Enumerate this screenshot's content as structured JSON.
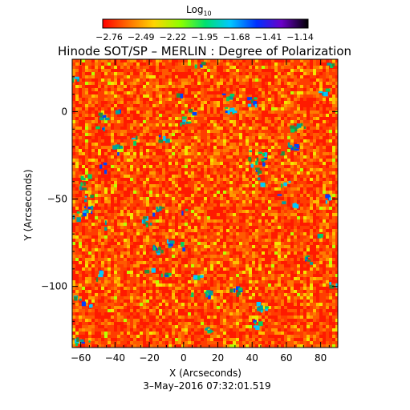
{
  "chart_data": {
    "type": "heatmap",
    "title": "Hinode SOT/SP – MERLIN : Degree of Polarization",
    "xlabel": "X (Arcseconds)",
    "ylabel": "Y (Arcseconds)",
    "xlim": [
      -65,
      90
    ],
    "ylim": [
      -135,
      30
    ],
    "x_ticks": [
      -60,
      -40,
      -20,
      0,
      20,
      40,
      60,
      80
    ],
    "y_ticks": [
      0,
      -50,
      -100
    ],
    "colorbar": {
      "label_base": "Log",
      "label_sub": "10",
      "tick_labels": [
        "−2.76",
        "−2.49",
        "−2.22",
        "−1.95",
        "−1.68",
        "−1.41",
        "−1.14"
      ],
      "range": [
        -2.76,
        -1.14
      ],
      "colormap": "rainbow (red → yellow → green → cyan → blue → purple → black)"
    },
    "field_description": "noisy field dominated by red-orange values (around −2.7 to −2.5) with scattered yellow/green and small blue/cyan patches",
    "timestamp": "3–May–2016 07:32:01.519"
  }
}
